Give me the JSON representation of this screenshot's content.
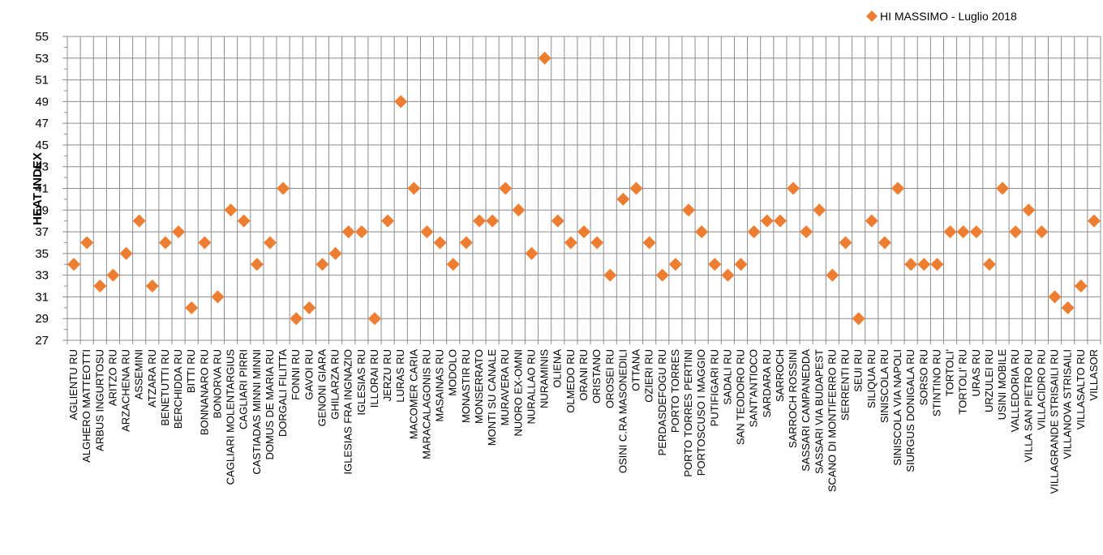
{
  "chart_data": {
    "type": "scatter",
    "ylabel": "HEAT INDEX",
    "ylim": [
      27,
      55
    ],
    "yticks": [
      27,
      29,
      31,
      33,
      35,
      37,
      39,
      41,
      43,
      45,
      47,
      49,
      51,
      53,
      55
    ],
    "grid": true,
    "legend_position": "top-right",
    "marker_color": "#ED7D31",
    "series": [
      {
        "name": "HI MASSIMO - Luglio 2018",
        "color": "#ED7D31",
        "marker": "diamond"
      }
    ],
    "categories": [
      "AGLIENTU RU",
      "ALGHERO MATTEOTTI",
      "ARBUS INGURTOSU",
      "ARITZO RU",
      "ARZACHENA RU",
      "ASSEMINI",
      "ATZARA RU",
      "BENETUTTI RU",
      "BERCHIDDA RU",
      "BITTI RU",
      "BONNANARO RU",
      "BONORVA RU",
      "CAGLIARI MOLENTARGIUS",
      "CAGLIARI PIRRI",
      "CASTIADAS MINNI MINNI",
      "DOMUS DE MARIA RU",
      "DORGALI FILITTA",
      "FONNI RU",
      "GAVOI RU",
      "GENONI GIARA",
      "GHILARZA RU",
      "IGLESIAS FRA INGNAZIO",
      "IGLESIAS RU",
      "ILLORAI RU",
      "JERZU RU",
      "LURAS RU",
      "MACOMER CARIA",
      "MARACALAGONIS RU",
      "MASAINAS RU",
      "MODOLO",
      "MONASTIR RU",
      "MONSERRATO",
      "MONTI SU CANALE",
      "MURAVERA RU",
      "NUORO EX-OMNI",
      "NURALLAO RU",
      "NURAMINIS",
      "OLIENA",
      "OLMEDO RU",
      "ORANI RU",
      "ORISTANO",
      "OROSEI RU",
      "OSINI C.RA MASONEDILI",
      "OTTANA",
      "OZIERI RU",
      "PERDASDEFOGU RU",
      "PORTO TORRES",
      "PORTO TORRES PERTINI",
      "PORTOSCUSO I MAGGIO",
      "PUTIFIGARI RU",
      "SADALI RU",
      "SAN TEODORO RU",
      "SANT'ANTIOCO",
      "SARDARA RU",
      "SARROCH",
      "SARROCH ROSSINI",
      "SASSARI CAMPANEDDA",
      "SASSARI VIA BUDAPEST",
      "SCANO DI MONTIFERRO RU",
      "SERRENTI RU",
      "SEUI RU",
      "SILIQUA RU",
      "SINISCOLA RU",
      "SINISCOLA VIA NAPOLI",
      "SIURGUS DONIGALA RU",
      "SORSO RU",
      "STINTINO RU",
      "TORTOLI'",
      "TORTOLI' RU",
      "URAS RU",
      "URZULEI RU",
      "USINI MOBILE",
      "VALLEDORIA RU",
      "VILLA SAN PIETRO RU",
      "VILLACIDRO RU",
      "VILLAGRANDE STRISAILI RU",
      "VILLANOVA STRISAILI",
      "VILLASALTO RU",
      "VILLASOR"
    ],
    "values": [
      34,
      36,
      32,
      33,
      35,
      38,
      32,
      36,
      37,
      30,
      36,
      31,
      39,
      38,
      34,
      36,
      41,
      29,
      30,
      34,
      35,
      37,
      37,
      29,
      38,
      49,
      41,
      37,
      36,
      34,
      36,
      38,
      38,
      41,
      39,
      35,
      53,
      38,
      36,
      37,
      36,
      33,
      40,
      41,
      36,
      33,
      34,
      39,
      37,
      34,
      33,
      34,
      37,
      38,
      38,
      41,
      37,
      39,
      33,
      36,
      29,
      38,
      36,
      41,
      34,
      34,
      34,
      37,
      37,
      37,
      34,
      41,
      37,
      39,
      37,
      31,
      30,
      32,
      38
    ]
  }
}
